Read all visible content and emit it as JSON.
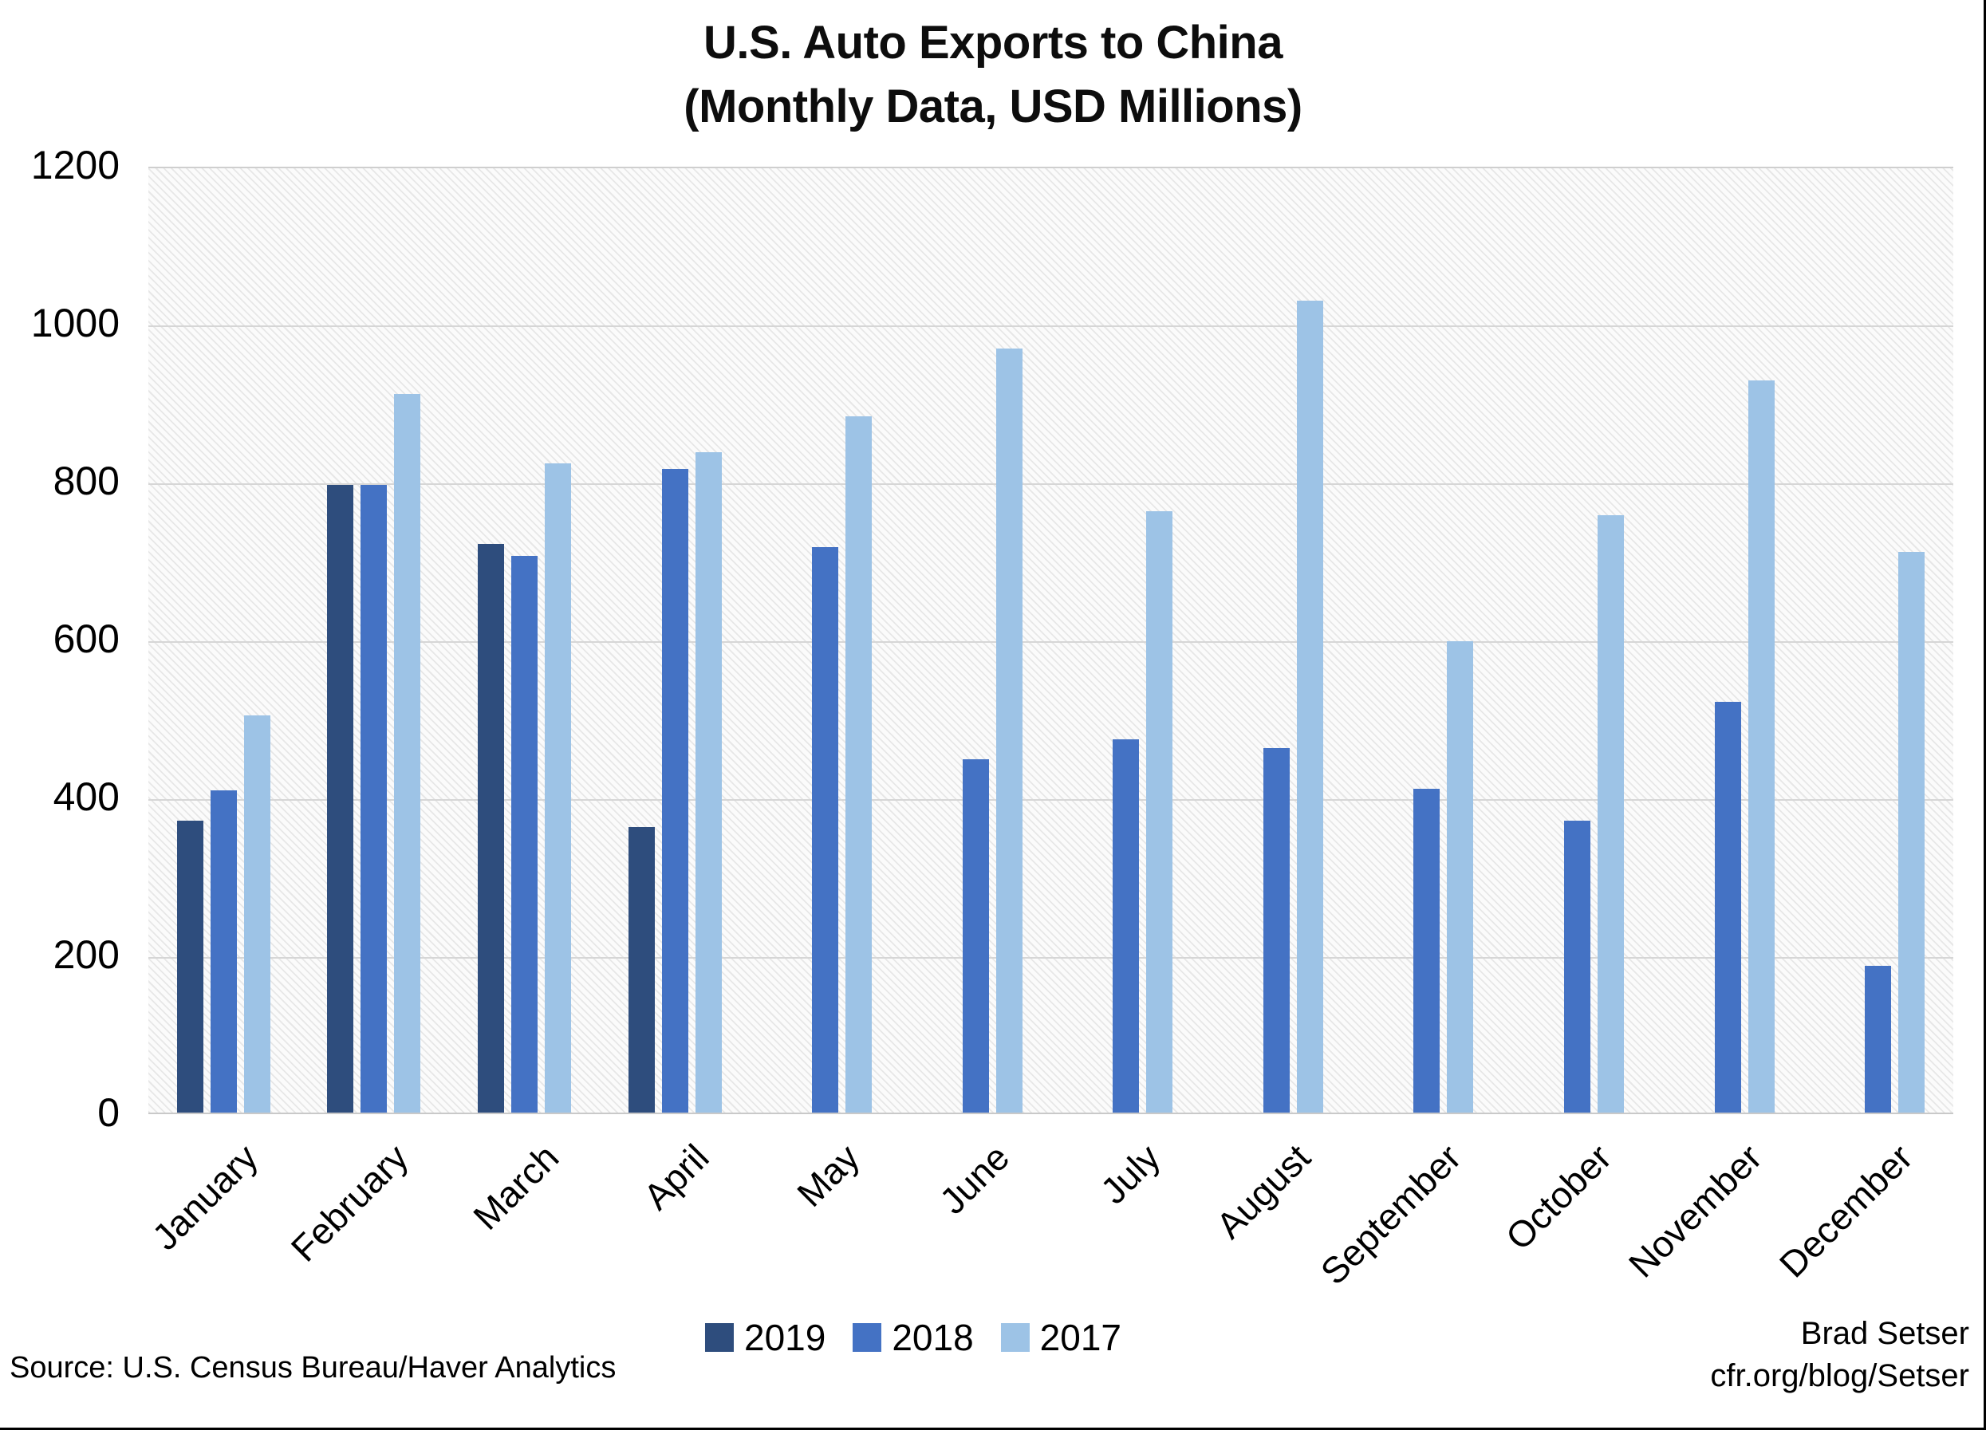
{
  "title": {
    "line1": "U.S. Auto Exports to China",
    "line2": "(Monthly Data, USD Millions)"
  },
  "chart_data": {
    "type": "bar",
    "title": "U.S. Auto Exports to China (Monthly Data, USD Millions)",
    "categories": [
      "January",
      "February",
      "March",
      "April",
      "May",
      "June",
      "July",
      "August",
      "September",
      "October",
      "November",
      "December"
    ],
    "series": [
      {
        "name": "2019",
        "color": "#2E4D7D",
        "values": [
          370,
          795,
          720,
          362,
          null,
          null,
          null,
          null,
          null,
          null,
          null,
          null
        ]
      },
      {
        "name": "2018",
        "color": "#4472C4",
        "values": [
          408,
          795,
          705,
          815,
          716,
          447,
          473,
          462,
          410,
          370,
          520,
          186
        ]
      },
      {
        "name": "2017",
        "color": "#9DC3E6",
        "values": [
          503,
          910,
          822,
          836,
          882,
          968,
          762,
          1028,
          597,
          757,
          927,
          710
        ]
      }
    ],
    "ylim": [
      0,
      1200
    ],
    "y_ticks": [
      0,
      200,
      400,
      600,
      800,
      1000,
      1200
    ],
    "xlabel": "",
    "ylabel": "",
    "grid": true,
    "x_tick_rotation": 45,
    "legend_position": "bottom-center",
    "plot_background": "hatched-light-gray"
  },
  "footer": {
    "source": "Source: U.S. Census Bureau/Haver Analytics",
    "attribution_line1": "Brad Setser",
    "attribution_line2": "cfr.org/blog/Setser"
  }
}
